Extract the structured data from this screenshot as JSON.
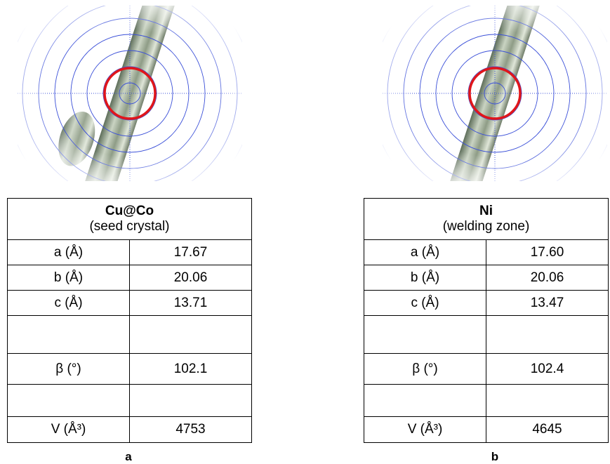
{
  "panels": [
    {
      "title": "Cu@Co",
      "subtitle": "(seed crystal)",
      "rows": [
        [
          "a (Å)",
          "17.67"
        ],
        [
          "b (Å)",
          "20.06"
        ],
        [
          "c (Å)",
          "13.71"
        ],
        null,
        [
          "β (°)",
          "102.1"
        ],
        null,
        [
          "V (Å³)",
          "4753"
        ]
      ],
      "label": "a"
    },
    {
      "title": "Ni",
      "subtitle": "(welding zone)",
      "rows": [
        [
          "a (Å)",
          "17.60"
        ],
        [
          "b (Å)",
          "20.06"
        ],
        [
          "c (Å)",
          "13.47"
        ],
        null,
        [
          "β (°)",
          "102.4"
        ],
        null,
        [
          "V (Å³)",
          "4645"
        ]
      ],
      "label": "b"
    }
  ]
}
